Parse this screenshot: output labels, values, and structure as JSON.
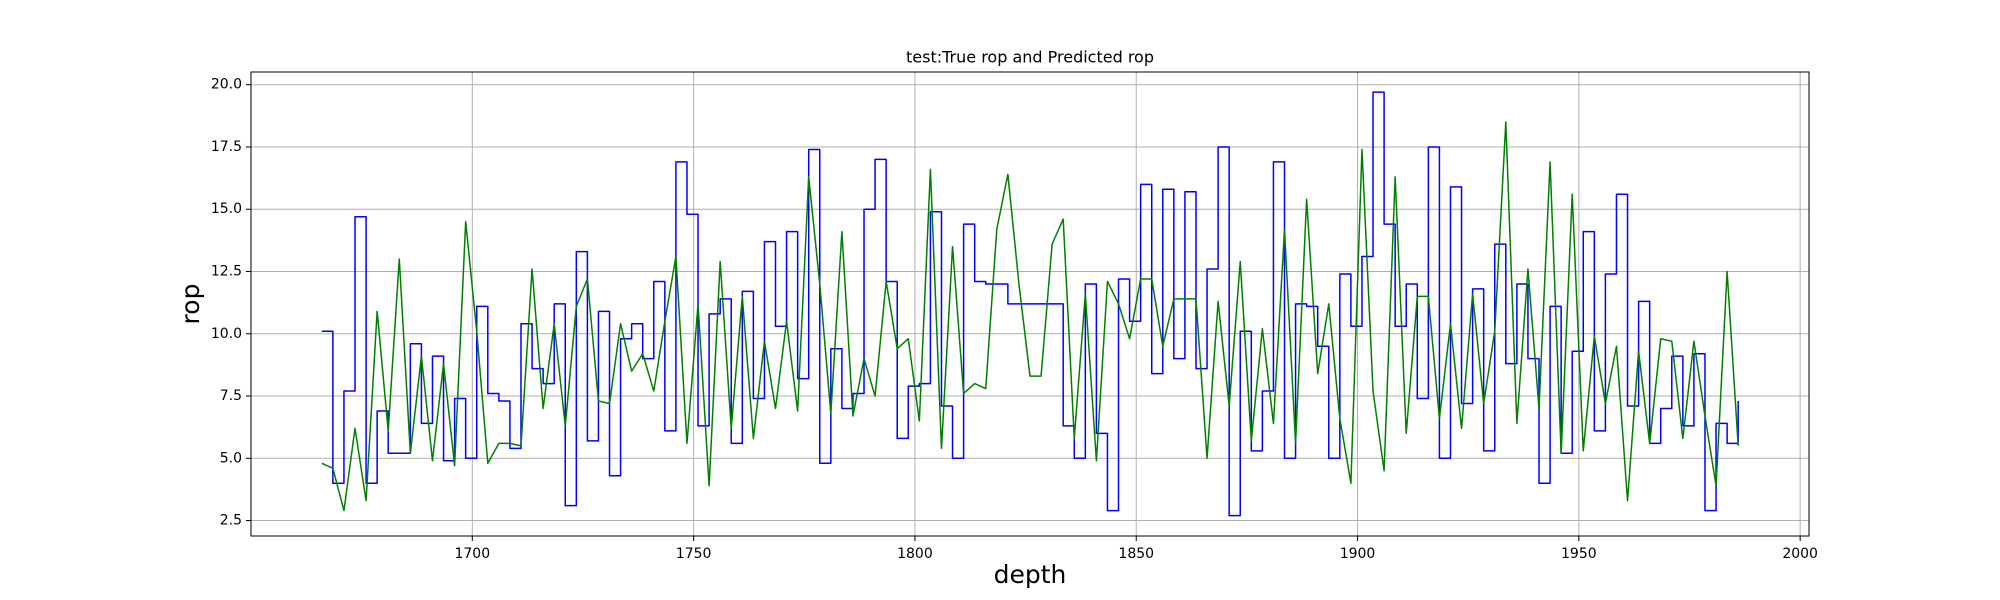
{
  "chart_data": {
    "type": "line",
    "title": "test:True rop and Predicted rop",
    "x_label": "depth",
    "y_label": "rop",
    "xlim": [
      1650,
      2002
    ],
    "ylim": [
      1.88,
      20.51
    ],
    "xticks": [
      1700,
      1750,
      1800,
      1850,
      1900,
      1950,
      2000
    ],
    "yticks": [
      2.5,
      {
        "value": 5,
        "label": "5.0"
      },
      7.5,
      {
        "value": 10,
        "label": "10.0"
      },
      12.5,
      {
        "value": 15,
        "label": "15.0"
      },
      17.5,
      {
        "value": 20,
        "label": "20.0"
      }
    ],
    "grid": true,
    "x": [
      1666,
      1668.5,
      1671,
      1673.5,
      1676,
      1678.5,
      1681,
      1683.5,
      1686,
      1688.5,
      1691,
      1693.5,
      1696,
      1698.5,
      1701,
      1703.5,
      1706,
      1708.5,
      1711,
      1713.5,
      1716,
      1718.5,
      1721,
      1723.5,
      1726,
      1728.5,
      1731,
      1733.5,
      1736,
      1738.5,
      1741,
      1743.5,
      1746,
      1748.5,
      1751,
      1753.5,
      1756,
      1758.5,
      1761,
      1763.5,
      1766,
      1768.5,
      1771,
      1773.5,
      1776,
      1778.5,
      1781,
      1783.5,
      1786,
      1788.5,
      1791,
      1793.5,
      1796,
      1798.5,
      1801,
      1803.5,
      1806,
      1808.5,
      1811,
      1813.5,
      1816,
      1818.5,
      1821,
      1823.5,
      1826,
      1828.5,
      1831,
      1833.5,
      1836,
      1838.5,
      1841,
      1843.5,
      1846,
      1848.5,
      1851,
      1853.5,
      1856,
      1858.5,
      1861,
      1863.5,
      1866,
      1868.5,
      1871,
      1873.5,
      1876,
      1878.5,
      1881,
      1883.5,
      1886,
      1888.5,
      1891,
      1893.5,
      1896,
      1898.5,
      1901,
      1903.5,
      1906,
      1908.5,
      1911,
      1913.5,
      1916,
      1918.5,
      1921,
      1923.5,
      1926,
      1928.5,
      1931,
      1933.5,
      1936,
      1938.5,
      1941,
      1943.5,
      1946,
      1948.5,
      1951,
      1953.5,
      1956,
      1958.5,
      1961,
      1963.5,
      1966,
      1968.5,
      1971,
      1973.5,
      1976,
      1978.5,
      1981,
      1983.5,
      1986
    ],
    "series": [
      {
        "color": "#0000ff",
        "step": "post",
        "values": [
          10.1,
          4.0,
          7.7,
          14.7,
          4.0,
          6.9,
          5.2,
          5.2,
          9.6,
          6.4,
          9.1,
          4.9,
          7.4,
          5.0,
          11.1,
          7.6,
          7.3,
          5.4,
          10.4,
          8.6,
          8.0,
          11.2,
          3.1,
          13.3,
          5.7,
          10.9,
          4.3,
          9.8,
          10.4,
          9.0,
          12.1,
          6.1,
          16.9,
          14.8,
          6.3,
          10.8,
          11.4,
          5.6,
          11.7,
          7.4,
          13.7,
          10.3,
          14.1,
          8.2,
          17.4,
          4.8,
          9.4,
          7.0,
          7.6,
          15.0,
          17.0,
          12.1,
          5.8,
          7.9,
          8.0,
          14.9,
          7.1,
          5.0,
          14.4,
          12.1,
          12.0,
          12.0,
          11.2,
          11.2,
          11.2,
          11.2,
          11.2,
          6.3,
          5.0,
          12.0,
          6.0,
          2.9,
          12.2,
          10.5,
          16.0,
          8.4,
          15.8,
          9.0,
          15.7,
          8.6,
          12.6,
          17.5,
          2.7,
          10.1,
          5.3,
          7.7,
          16.9,
          5.0,
          11.2,
          11.1,
          9.5,
          5.0,
          12.4,
          10.3,
          13.1,
          19.7,
          14.4,
          10.3,
          12.0,
          7.4,
          17.5,
          5.0,
          15.9,
          7.2,
          11.8,
          5.3,
          13.6,
          8.8,
          12.0,
          9.0,
          4.0,
          11.1,
          5.2,
          9.3,
          14.1,
          6.1,
          12.4,
          15.6,
          7.1,
          11.3,
          5.6,
          7.0,
          9.1,
          6.3,
          9.2,
          2.9,
          6.4,
          5.6,
          7.3
        ]
      },
      {
        "color": "#008000",
        "values": [
          4.8,
          4.6,
          2.9,
          6.2,
          3.3,
          10.9,
          6.1,
          13.0,
          5.2,
          9.1,
          4.9,
          8.8,
          4.7,
          14.5,
          10.1,
          4.8,
          5.6,
          5.6,
          5.5,
          12.6,
          7.0,
          10.4,
          6.3,
          11.1,
          12.2,
          7.3,
          7.2,
          10.4,
          8.5,
          9.2,
          7.7,
          10.5,
          13.1,
          5.6,
          11.2,
          3.9,
          12.9,
          6.2,
          11.5,
          5.8,
          9.7,
          7.0,
          10.5,
          6.9,
          16.3,
          12.0,
          6.8,
          14.1,
          6.7,
          9.0,
          7.5,
          12.1,
          9.4,
          9.8,
          6.5,
          16.6,
          5.4,
          13.5,
          7.6,
          8.0,
          7.8,
          14.2,
          16.4,
          12.0,
          8.3,
          8.3,
          13.6,
          14.6,
          5.8,
          11.6,
          4.9,
          12.1,
          11.2,
          9.8,
          12.2,
          12.2,
          9.5,
          11.4,
          11.4,
          11.4,
          5.0,
          11.3,
          7.1,
          12.9,
          5.7,
          10.2,
          6.4,
          14.2,
          5.6,
          15.4,
          8.4,
          11.2,
          6.6,
          4.0,
          17.4,
          7.7,
          4.5,
          16.3,
          6.0,
          11.5,
          11.5,
          6.6,
          10.4,
          6.2,
          11.6,
          7.2,
          10.1,
          18.5,
          6.4,
          12.6,
          7.0,
          16.9,
          5.2,
          15.6,
          5.3,
          9.9,
          7.2,
          9.5,
          3.3,
          9.3,
          5.6,
          9.8,
          9.7,
          5.8,
          9.7,
          6.7,
          3.9,
          12.5,
          5.5
        ]
      }
    ]
  }
}
